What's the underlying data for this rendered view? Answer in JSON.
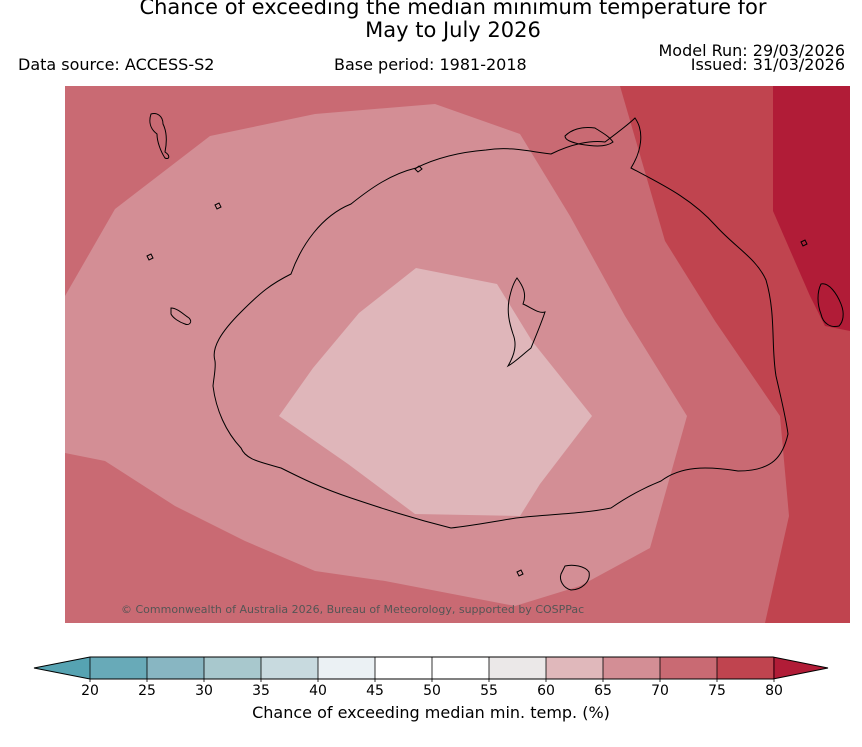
{
  "title": {
    "line1": "Chance of exceeding the median minimum temperature for",
    "line2": "May to July 2026"
  },
  "meta": {
    "data_source": "Data source: ACCESS-S2",
    "base_period": "Base period: 1981-2018",
    "model_run": "Model Run: 29/03/2026",
    "issued": "Issued: 31/03/2026"
  },
  "map": {
    "copyright": "© Commonwealth of Australia 2026, Bureau of Meteorology, supported by COSPPac",
    "fill_colors": {
      "band_65_70": "#d38e95",
      "band_60_65": "#dfb6ba",
      "band_70_75": "#c96a73",
      "band_75_80": "#c0444f",
      "band_80_plus": "#b11c37"
    }
  },
  "colorbar": {
    "label": "Chance of exceeding median min. temp. (%)",
    "ticks": [
      "20",
      "25",
      "30",
      "35",
      "40",
      "45",
      "50",
      "55",
      "60",
      "65",
      "70",
      "75",
      "80"
    ],
    "colors": [
      "#68aab8",
      "#88b6c2",
      "#a8c8cd",
      "#c8dadf",
      "#ebf1f4",
      "#ffffff",
      "#ffffff",
      "#ebe8e8",
      "#e0b8bb",
      "#d38e95",
      "#c96a73",
      "#c0444f"
    ],
    "under_color": "#56a3b2",
    "over_color": "#b11c37"
  }
}
